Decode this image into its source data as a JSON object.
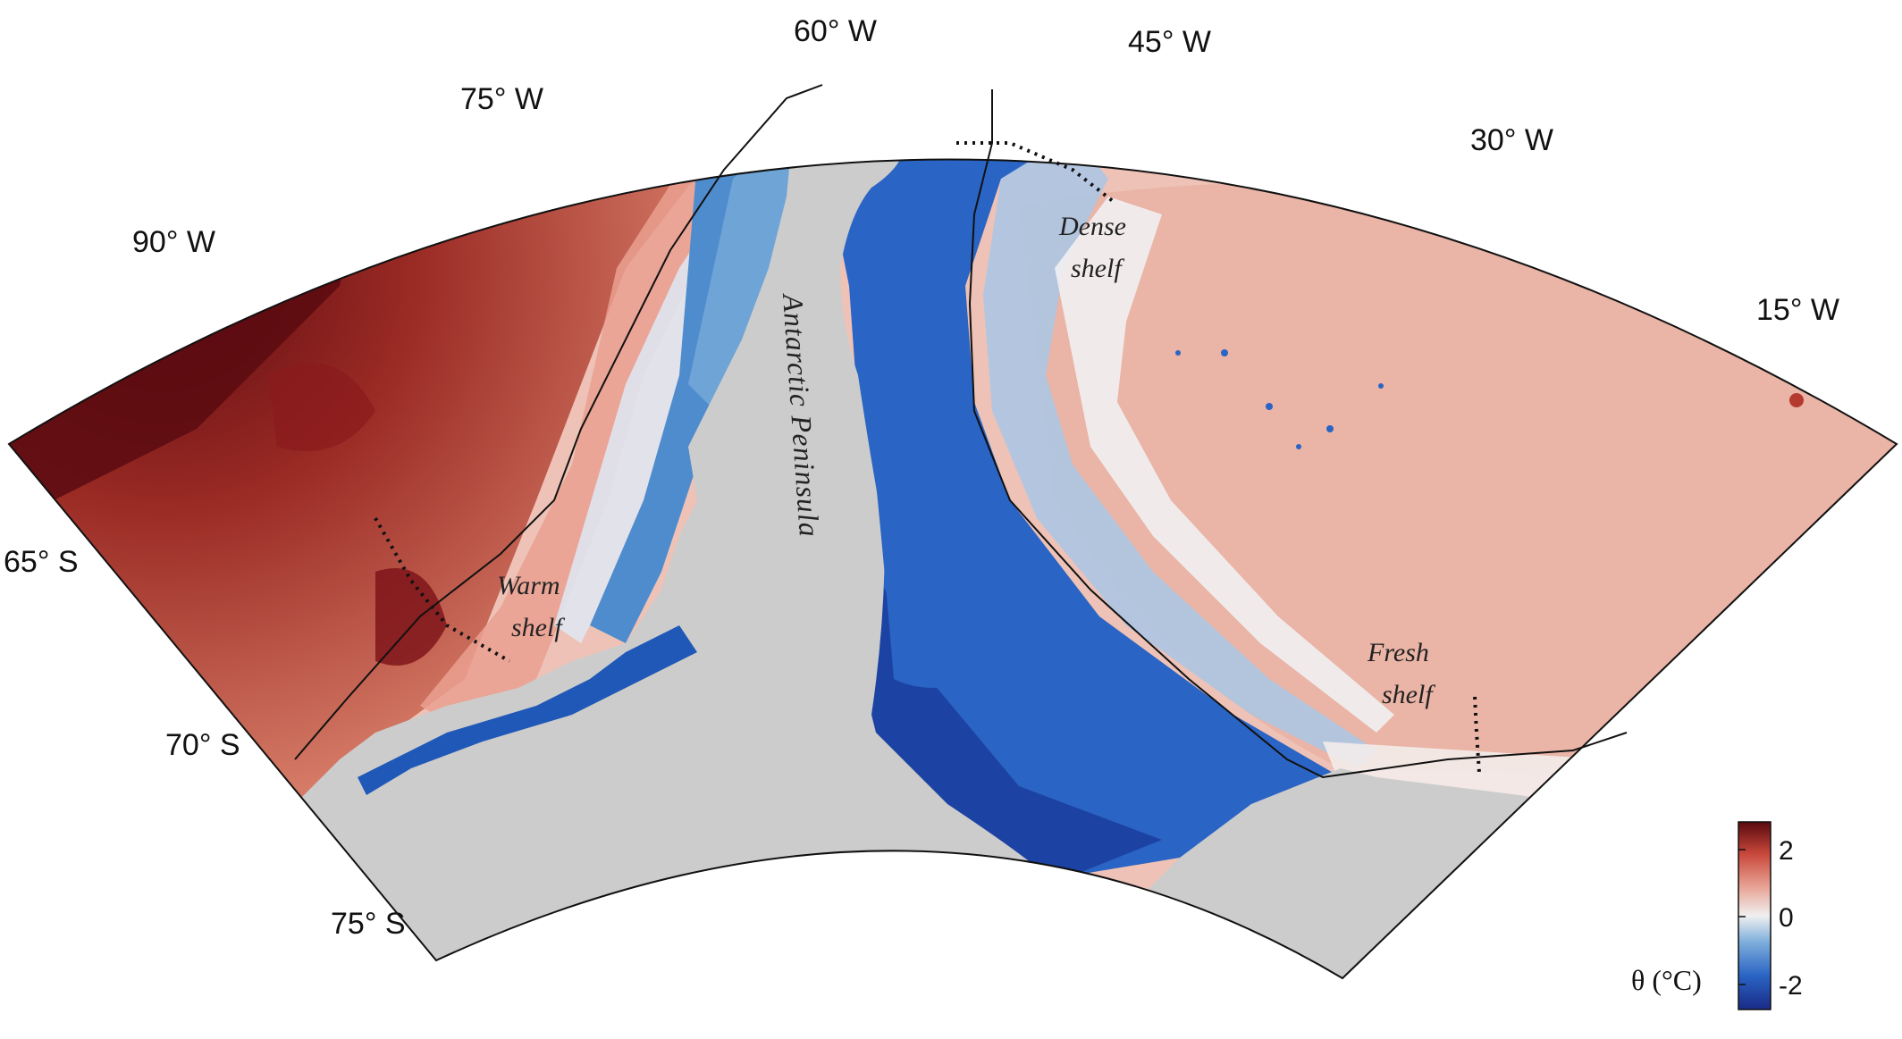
{
  "map": {
    "longitude_labels": [
      "60° W",
      "45° W",
      "75° W",
      "30° W",
      "90° W",
      "15° W"
    ],
    "latitude_labels": [
      "65° S",
      "70° S",
      "75° S"
    ],
    "regions": {
      "peninsula": "Antarctic Peninsula",
      "warm_shelf": [
        "Warm",
        "shelf"
      ],
      "dense_shelf": [
        "Dense",
        "shelf"
      ],
      "fresh_shelf": [
        "Fresh",
        "shelf"
      ]
    }
  },
  "colorbar": {
    "title": "θ (°C)",
    "ticks": [
      "2",
      "0",
      "-2"
    ],
    "range": [
      -2.5,
      2.5
    ],
    "colors": [
      "#1a2a86",
      "#2a64c4",
      "#7eaedb",
      "#f0f0f0",
      "#e8a597",
      "#c8473a",
      "#5a0a10"
    ]
  },
  "colors": {
    "land": "#cccccc",
    "warm": "#c44a3a",
    "dark_warm": "#7a1016",
    "cold": "#2058b8",
    "deep_cold": "#1b3fa0",
    "neutral": "#eee8e6"
  }
}
